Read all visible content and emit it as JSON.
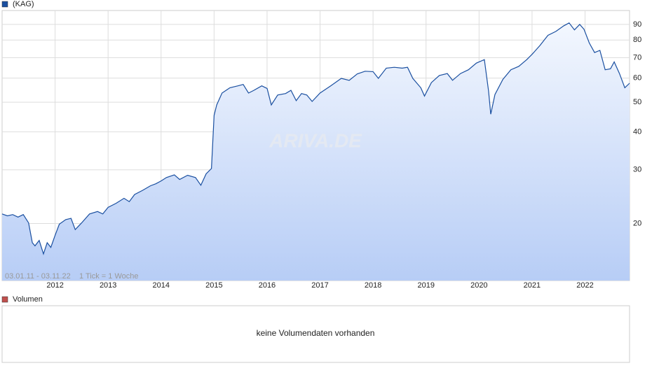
{
  "chart_data": {
    "type": "line",
    "log_scale": true,
    "grid": true,
    "watermark": "ARIVA.DE",
    "date_range": "03.01.11 - 03.11.22",
    "tick_note": "1 Tick = 1 Woche",
    "xlim": [
      2011.0,
      2022.84
    ],
    "xticks": [
      2012,
      2013,
      2014,
      2015,
      2016,
      2017,
      2018,
      2019,
      2020,
      2021,
      2022
    ],
    "ylim": [
      13,
      100
    ],
    "yticks": [
      20,
      30,
      40,
      50,
      60,
      70,
      80,
      90
    ],
    "x": [
      2011.0,
      2011.1,
      2011.2,
      2011.3,
      2011.4,
      2011.5,
      2011.57,
      2011.62,
      2011.7,
      2011.78,
      2011.85,
      2011.92,
      2012.0,
      2012.08,
      2012.2,
      2012.3,
      2012.38,
      2012.5,
      2012.65,
      2012.8,
      2012.9,
      2013.0,
      2013.15,
      2013.3,
      2013.4,
      2013.5,
      2013.65,
      2013.8,
      2013.9,
      2014.0,
      2014.1,
      2014.25,
      2014.35,
      2014.5,
      2014.65,
      2014.75,
      2014.85,
      2014.95,
      2015.0,
      2015.05,
      2015.15,
      2015.3,
      2015.45,
      2015.55,
      2015.65,
      2015.75,
      2015.9,
      2016.0,
      2016.08,
      2016.2,
      2016.35,
      2016.45,
      2016.55,
      2016.65,
      2016.75,
      2016.85,
      2017.0,
      2017.2,
      2017.4,
      2017.55,
      2017.7,
      2017.85,
      2018.0,
      2018.1,
      2018.25,
      2018.4,
      2018.55,
      2018.65,
      2018.75,
      2018.9,
      2018.97,
      2019.1,
      2019.25,
      2019.4,
      2019.5,
      2019.65,
      2019.8,
      2019.95,
      2020.1,
      2020.18,
      2020.22,
      2020.3,
      2020.45,
      2020.6,
      2020.75,
      2020.9,
      2021.0,
      2021.15,
      2021.3,
      2021.45,
      2021.6,
      2021.7,
      2021.8,
      2021.9,
      2021.98,
      2022.08,
      2022.18,
      2022.28,
      2022.38,
      2022.48,
      2022.55,
      2022.65,
      2022.75,
      2022.84
    ],
    "series": [
      {
        "name": "(KAG)",
        "color": "#1a4fa0",
        "values": [
          21.5,
          21.2,
          21.4,
          21.0,
          21.4,
          20.1,
          17.3,
          16.9,
          17.6,
          15.9,
          17.3,
          16.7,
          18.3,
          19.9,
          20.6,
          20.8,
          19.1,
          20.1,
          21.5,
          21.9,
          21.5,
          22.6,
          23.3,
          24.2,
          23.6,
          24.9,
          25.7,
          26.6,
          27.0,
          27.6,
          28.3,
          28.9,
          27.9,
          28.8,
          28.3,
          26.7,
          29.1,
          30.3,
          45.3,
          49.0,
          53.6,
          55.8,
          56.6,
          57.2,
          53.6,
          54.7,
          56.6,
          55.5,
          49.0,
          52.8,
          53.4,
          54.7,
          50.6,
          53.4,
          52.8,
          50.3,
          53.6,
          56.6,
          59.9,
          59.0,
          61.9,
          63.2,
          63.0,
          59.9,
          64.7,
          65.1,
          64.7,
          65.1,
          59.9,
          55.8,
          52.4,
          58.0,
          61.2,
          62.1,
          59.0,
          62.1,
          63.9,
          67.2,
          69.0,
          54.4,
          45.7,
          53.0,
          59.4,
          63.9,
          65.6,
          69.0,
          71.8,
          76.8,
          82.9,
          85.4,
          89.1,
          91.0,
          86.4,
          90.0,
          86.8,
          78.2,
          72.8,
          74.0,
          63.9,
          64.4,
          67.8,
          62.1,
          55.8,
          57.7
        ]
      }
    ],
    "volume_panel": {
      "legend": "Volumen",
      "color": "#c0504d",
      "message": "keine Volumendaten vorhanden"
    }
  }
}
